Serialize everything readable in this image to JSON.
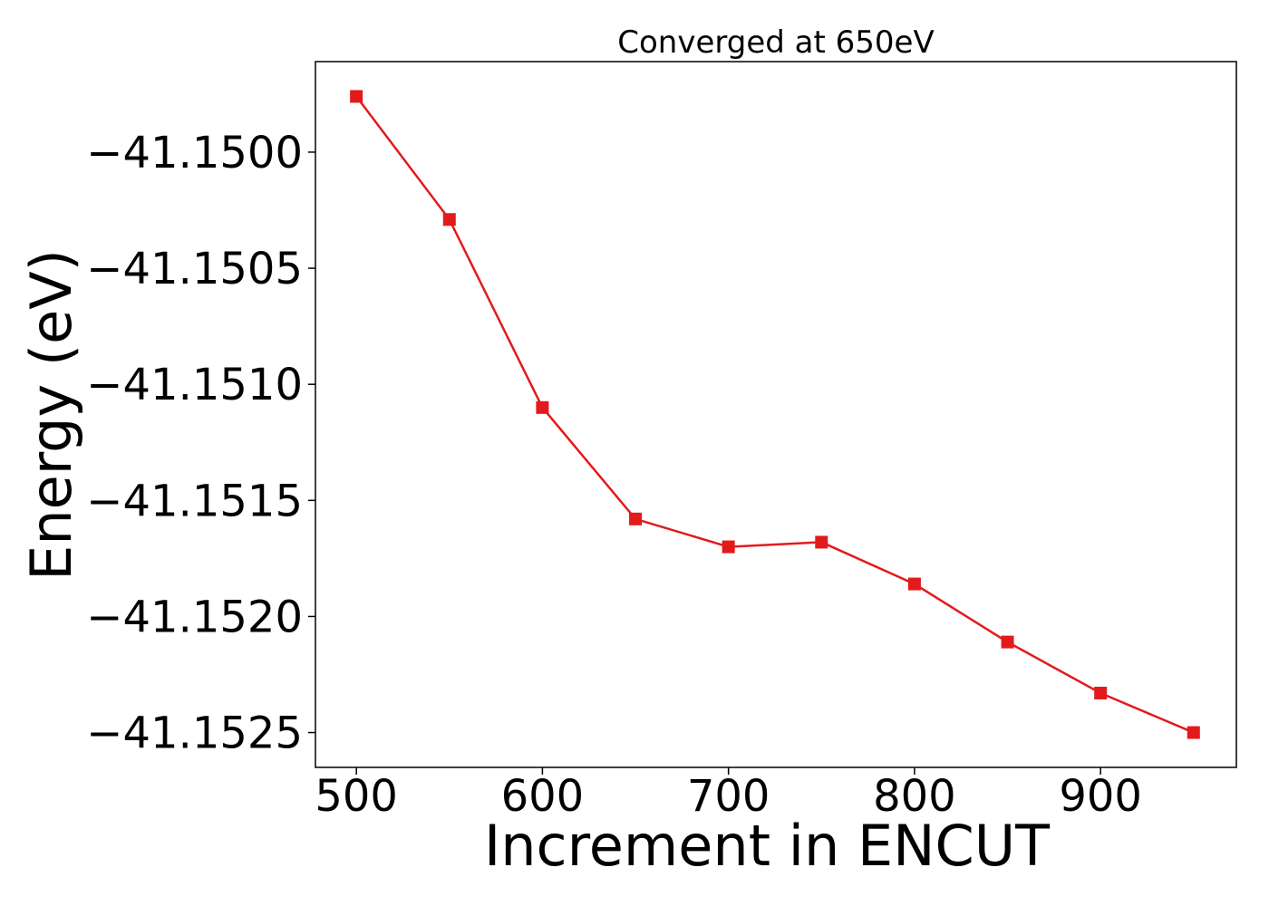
{
  "chart_data": {
    "type": "line",
    "title": "Converged at 650eV",
    "xlabel": "Increment in ENCUT",
    "ylabel": "Energy (eV)",
    "xlim": [
      478,
      973
    ],
    "ylim": [
      -41.15265,
      -41.14961
    ],
    "xticks": [
      500,
      600,
      700,
      800,
      900
    ],
    "xtick_labels": [
      "500",
      "600",
      "700",
      "800",
      "900"
    ],
    "yticks": [
      -41.15,
      -41.1505,
      -41.151,
      -41.1515,
      -41.152,
      -41.1525
    ],
    "ytick_labels": [
      "−41.1500",
      "−41.1505",
      "−41.1510",
      "−41.1515",
      "−41.1520",
      "−41.1525"
    ],
    "grid": false,
    "legend": "none",
    "series": [
      {
        "color": "#e31a1c",
        "marker": "square",
        "x": [
          500,
          550,
          600,
          650,
          700,
          750,
          800,
          850,
          900,
          950
        ],
        "y": [
          -41.14976,
          -41.15029,
          -41.1511,
          -41.15158,
          -41.1517,
          -41.15168,
          -41.15186,
          -41.15211,
          -41.15233,
          -41.1525
        ]
      }
    ]
  }
}
